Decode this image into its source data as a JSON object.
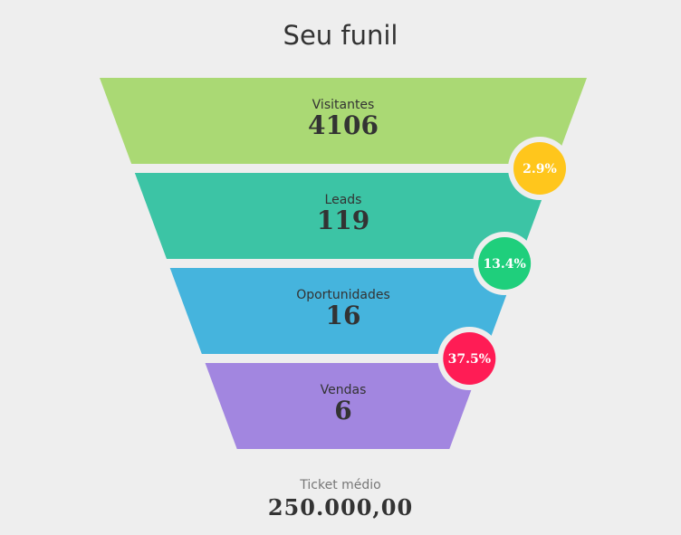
{
  "title": "Seu funil",
  "chart_data": {
    "type": "funnel",
    "stages": [
      {
        "label": "Visitantes",
        "value": "4106",
        "color": "#aad974"
      },
      {
        "label": "Leads",
        "value": "119",
        "color": "#3cc4a5"
      },
      {
        "label": "Oportunidades",
        "value": "16",
        "color": "#45b4dd"
      },
      {
        "label": "Vendas",
        "value": "6",
        "color": "#a286e0"
      }
    ],
    "conversion_rates": [
      {
        "label": "2.9%",
        "color": "#ffc61c"
      },
      {
        "label": "13.4%",
        "color": "#1fcf7c"
      },
      {
        "label": "37.5%",
        "color": "#ff1c55"
      }
    ]
  },
  "footer": {
    "label": "Ticket médio",
    "value": "250.000,00"
  }
}
